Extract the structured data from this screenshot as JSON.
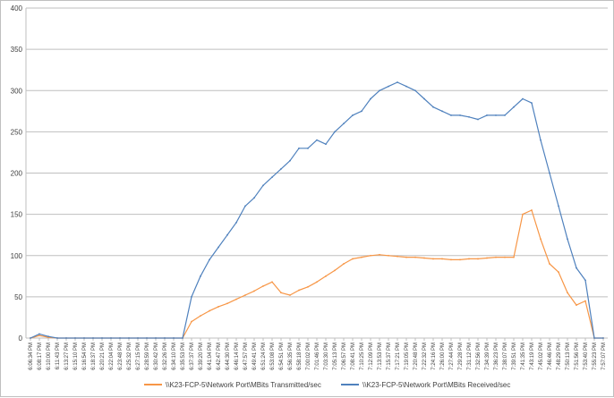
{
  "chart_data": {
    "type": "line",
    "title": "",
    "xlabel": "",
    "ylabel": "",
    "ylim": [
      0,
      400
    ],
    "y_ticks": [
      0,
      50,
      100,
      150,
      200,
      250,
      300,
      350,
      400
    ],
    "grid": "horizontal",
    "legend_position": "bottom",
    "x_tick_labels": [
      "6:06:34 PM",
      "6:08:17 PM",
      "6:10:00 PM",
      "6:11:43 PM",
      "6:13:27 PM",
      "6:15:10 PM",
      "6:16:54 PM",
      "6:18:37 PM",
      "6:20:21 PM",
      "6:22:04 PM",
      "6:23:48 PM",
      "6:25:32 PM",
      "6:27:15 PM",
      "6:28:59 PM",
      "6:30:42 PM",
      "6:32:26 PM",
      "6:34:10 PM",
      "6:35:53 PM",
      "6:37:37 PM",
      "6:39:20 PM",
      "6:41:04 PM",
      "6:42:47 PM",
      "6:44:30 PM",
      "6:46:14 PM",
      "6:47:57 PM",
      "6:49:41 PM",
      "6:51:24 PM",
      "6:53:08 PM",
      "6:54:51 PM",
      "6:56:35 PM",
      "6:58:18 PM",
      "7:00:02 PM",
      "7:01:46 PM",
      "7:03:30 PM",
      "7:05:13 PM",
      "7:06:57 PM",
      "7:08:41 PM",
      "7:10:25 PM",
      "7:12:09 PM",
      "7:13:53 PM",
      "7:15:37 PM",
      "7:17:21 PM",
      "7:19:05 PM",
      "7:20:48 PM",
      "7:22:32 PM",
      "7:24:16 PM",
      "7:26:00 PM",
      "7:27:44 PM",
      "7:29:28 PM",
      "7:31:12 PM",
      "7:32:56 PM",
      "7:34:39 PM",
      "7:36:23 PM",
      "7:38:07 PM",
      "7:39:51 PM",
      "7:41:35 PM",
      "7:43:19 PM",
      "7:45:02 PM",
      "7:46:46 PM",
      "7:48:29 PM",
      "7:50:13 PM",
      "7:51:56 PM",
      "7:53:40 PM",
      "7:55:23 PM",
      "7:57:07 PM"
    ],
    "series": [
      {
        "name": "\\\\K23-FCP-5\\Network Port\\MBits Transmitted/sec",
        "color": "#f79646",
        "values": [
          0,
          3,
          1,
          0,
          0,
          0,
          0,
          0,
          0,
          0,
          0,
          0,
          0,
          0,
          0,
          0,
          0,
          0,
          20,
          27,
          33,
          38,
          42,
          47,
          52,
          57,
          63,
          68,
          55,
          52,
          58,
          62,
          68,
          75,
          82,
          90,
          96,
          98,
          100,
          101,
          100,
          99,
          98,
          98,
          97,
          96,
          96,
          95,
          95,
          96,
          96,
          97,
          98,
          98,
          98,
          150,
          155,
          120,
          90,
          80,
          55,
          40,
          45,
          0,
          0
        ]
      },
      {
        "name": "\\\\K23-FCP-5\\Network Port\\MBits Received/sec",
        "color": "#4f81bd",
        "values": [
          0,
          5,
          2,
          0,
          0,
          0,
          0,
          0,
          0,
          0,
          0,
          0,
          0,
          0,
          0,
          0,
          0,
          0,
          50,
          75,
          95,
          110,
          125,
          140,
          160,
          170,
          185,
          195,
          205,
          215,
          230,
          230,
          240,
          235,
          250,
          260,
          270,
          275,
          290,
          300,
          305,
          310,
          305,
          300,
          290,
          280,
          275,
          270,
          270,
          268,
          265,
          270,
          270,
          270,
          280,
          290,
          285,
          240,
          200,
          160,
          120,
          85,
          70,
          0,
          0
        ]
      }
    ]
  }
}
